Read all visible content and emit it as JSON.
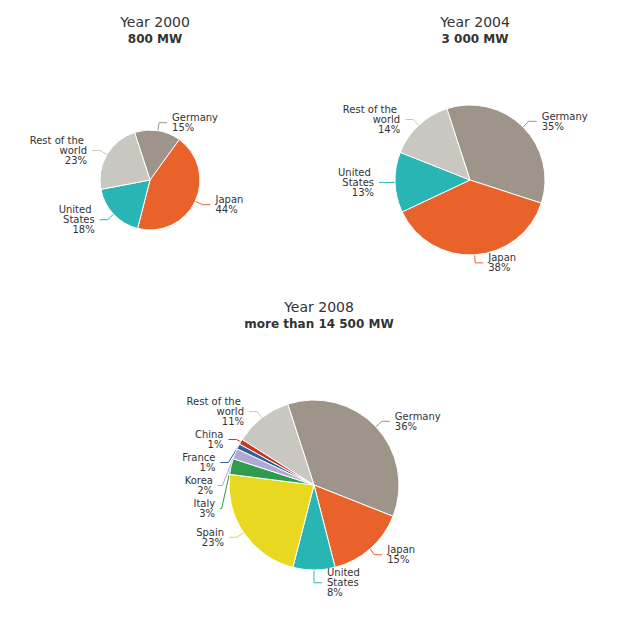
{
  "chart_data": [
    {
      "type": "pie",
      "title": "Year 2000",
      "subtitle": "800 MW",
      "categories": [
        "Germany",
        "Japan",
        "United States",
        "Rest of the world"
      ],
      "values": [
        15,
        44,
        18,
        23
      ],
      "value_labels": [
        "15%",
        "44%",
        "18%",
        "23%"
      ],
      "colors": [
        "#9e9489",
        "#e8622a",
        "#2ab5b5",
        "#c8c8c0"
      ],
      "data_labels": true
    },
    {
      "type": "pie",
      "title": "Year 2004",
      "subtitle": "3 000 MW",
      "categories": [
        "Germany",
        "Japan",
        "United States",
        "Rest of the world"
      ],
      "values": [
        35,
        38,
        13,
        14
      ],
      "value_labels": [
        "35%",
        "38%",
        "13%",
        "14%"
      ],
      "colors": [
        "#9e9489",
        "#e8622a",
        "#2ab5b5",
        "#c8c8c0"
      ],
      "data_labels": true
    },
    {
      "type": "pie",
      "title": "Year 2008",
      "subtitle": "more than 14 500 MW",
      "categories": [
        "Germany",
        "Japan",
        "United States",
        "Spain",
        "Italy",
        "Korea",
        "France",
        "China",
        "Rest of the world"
      ],
      "values": [
        36,
        15,
        8,
        23,
        3,
        2,
        1,
        1,
        11
      ],
      "value_labels": [
        "36%",
        "15%",
        "8%",
        "23%",
        "3%",
        "2%",
        "1%",
        "1%",
        "11%"
      ],
      "colors": [
        "#9e9489",
        "#e8622a",
        "#2ab5b5",
        "#e8d820",
        "#2e9b4e",
        "#b0aad2",
        "#3060a0",
        "#c83820",
        "#c8c8c0"
      ],
      "data_labels": true
    }
  ]
}
